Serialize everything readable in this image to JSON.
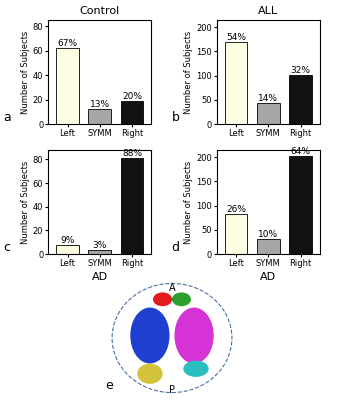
{
  "chart_data": [
    {
      "type": "bar",
      "panel": "a",
      "title": "Control",
      "y_label": "Number of Subjects",
      "categories": [
        "Left",
        "SYMM",
        "Right"
      ],
      "values": [
        62,
        12,
        19
      ],
      "annotations": [
        "67%",
        "13%",
        "20%"
      ],
      "colors": [
        "#fdfde3",
        "#a6a6a6",
        "#111111"
      ],
      "ylim": [
        0,
        85
      ],
      "yticks": [
        0,
        20,
        40,
        60,
        80
      ],
      "grid": false
    },
    {
      "type": "bar",
      "panel": "b",
      "title": "ALL",
      "y_label": "Number of Subjects",
      "categories": [
        "Left",
        "SYMM",
        "Right"
      ],
      "values": [
        170,
        44,
        101
      ],
      "annotations": [
        "54%",
        "14%",
        "32%"
      ],
      "colors": [
        "#fdfde3",
        "#a6a6a6",
        "#111111"
      ],
      "ylim": [
        0,
        215
      ],
      "yticks": [
        0,
        50,
        100,
        150,
        200
      ],
      "grid": false
    },
    {
      "type": "bar",
      "panel": "c",
      "title": "AD",
      "y_label": "Number of Subjects",
      "categories": [
        "Left",
        "SYMM",
        "Right"
      ],
      "values": [
        8,
        3,
        81
      ],
      "annotations": [
        "9%",
        "3%",
        "88%"
      ],
      "colors": [
        "#fdfde3",
        "#a6a6a6",
        "#111111"
      ],
      "ylim": [
        0,
        88
      ],
      "yticks": [
        0,
        20,
        40,
        60,
        80
      ],
      "grid": false
    },
    {
      "type": "bar",
      "panel": "d",
      "title": "AD",
      "y_label": "Number of Subjects",
      "categories": [
        "Left",
        "SYMM",
        "Right"
      ],
      "values": [
        83,
        31,
        202
      ],
      "annotations": [
        "26%",
        "10%",
        "64%"
      ],
      "colors": [
        "#fdfde3",
        "#a6a6a6",
        "#111111"
      ],
      "ylim": [
        0,
        215
      ],
      "yticks": [
        0,
        50,
        100,
        150,
        200
      ],
      "grid": false
    }
  ],
  "brain_panel": {
    "panel": "e",
    "anterior": "A",
    "posterior": "P"
  }
}
